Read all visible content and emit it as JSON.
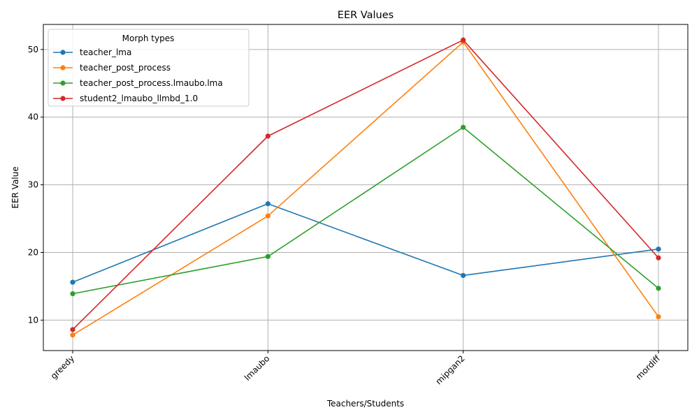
{
  "chart_data": {
    "type": "line",
    "title": "EER Values",
    "xlabel": "Teachers/Students",
    "ylabel": "EER Value",
    "categories": [
      "greedy",
      "lmaubo",
      "mipgan2",
      "mordiff"
    ],
    "ylim": [
      5.5,
      53.7
    ],
    "yticks": [
      10,
      20,
      30,
      40,
      50
    ],
    "grid": true,
    "legend": {
      "title": "Morph types",
      "placement": "top-left"
    },
    "series": [
      {
        "name": "teacher_lma",
        "color": "#1f77b4",
        "values": [
          15.6,
          27.2,
          16.6,
          20.5
        ]
      },
      {
        "name": "teacher_post_process",
        "color": "#ff7f0e",
        "values": [
          7.8,
          25.4,
          51.1,
          10.5
        ]
      },
      {
        "name": "teacher_post_process.lmaubo.lma",
        "color": "#2ca02c",
        "values": [
          13.9,
          19.4,
          38.5,
          14.7
        ]
      },
      {
        "name": "student2_lmaubo_llmbd_1.0",
        "color": "#d62728",
        "values": [
          8.6,
          37.2,
          51.4,
          19.2
        ]
      }
    ]
  }
}
